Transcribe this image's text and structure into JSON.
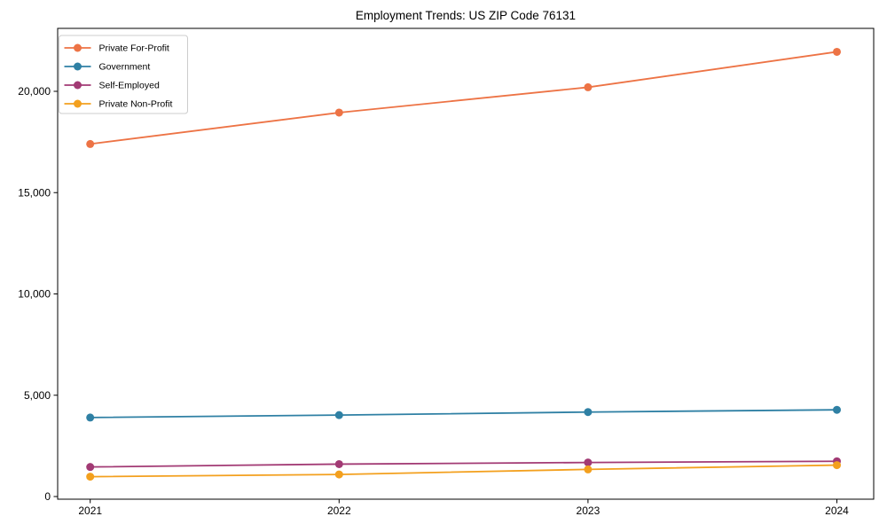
{
  "chart_data": {
    "type": "line",
    "title": "Employment Trends: US ZIP Code 76131",
    "xlabel": "",
    "ylabel": "",
    "categories": [
      "2021",
      "2022",
      "2023",
      "2024"
    ],
    "series": [
      {
        "name": "Private For-Profit",
        "color": "#ed7345",
        "values": [
          17400,
          18950,
          20200,
          21950
        ]
      },
      {
        "name": "Government",
        "color": "#2f80a4",
        "values": [
          3900,
          4020,
          4170,
          4280
        ]
      },
      {
        "name": "Self-Employed",
        "color": "#a23a74",
        "values": [
          1460,
          1600,
          1680,
          1740
        ]
      },
      {
        "name": "Private Non-Profit",
        "color": "#f3a01e",
        "values": [
          980,
          1090,
          1340,
          1550
        ]
      }
    ],
    "yticks": [
      0,
      5000,
      10000,
      15000,
      20000
    ],
    "ytick_labels": [
      "0",
      "5,000",
      "10,000",
      "15,000",
      "20,000"
    ],
    "ylim": [
      0,
      23000
    ],
    "grid": false,
    "legend_position": "top-left",
    "marker": "circle",
    "axis_color": "#000000",
    "legend_border_color": "#cccccc",
    "legend_background": "#ffffff"
  }
}
